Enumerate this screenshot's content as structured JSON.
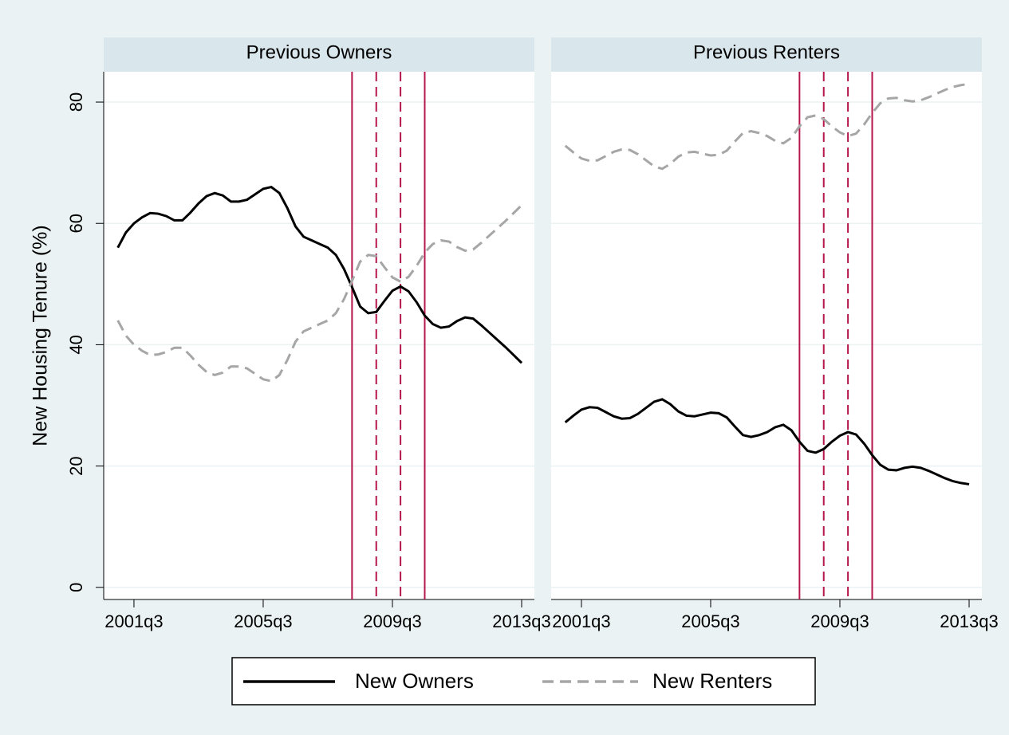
{
  "chart_data": [
    {
      "type": "line",
      "title": "Previous Owners",
      "y_label": "New Housing Tenure (%)",
      "x": [
        "2001q1",
        "2001q2",
        "2001q3",
        "2001q4",
        "2002q1",
        "2002q2",
        "2002q3",
        "2002q4",
        "2003q1",
        "2003q2",
        "2003q3",
        "2003q4",
        "2004q1",
        "2004q2",
        "2004q3",
        "2004q4",
        "2005q1",
        "2005q2",
        "2005q3",
        "2005q4",
        "2006q1",
        "2006q2",
        "2006q3",
        "2006q4",
        "2007q1",
        "2007q2",
        "2007q3",
        "2007q4",
        "2008q1",
        "2008q2",
        "2008q3",
        "2008q4",
        "2009q1",
        "2009q2",
        "2009q3",
        "2009q4",
        "2010q1",
        "2010q2",
        "2010q3",
        "2010q4",
        "2011q1",
        "2011q2",
        "2011q3",
        "2011q4",
        "2012q1",
        "2012q2",
        "2012q3",
        "2012q4",
        "2013q1",
        "2013q2",
        "2013q3"
      ],
      "xticks": [
        "2001q3",
        "2005q3",
        "2009q3",
        "2013q3"
      ],
      "ylim": [
        -2,
        85
      ],
      "yticks": [
        0,
        20,
        40,
        60,
        80
      ],
      "grid": true,
      "reference_lines": [
        {
          "x": "2008q2",
          "style": "solid"
        },
        {
          "x": "2009q1",
          "style": "dashed"
        },
        {
          "x": "2009q4",
          "style": "dashed"
        },
        {
          "x": "2010q3",
          "style": "solid"
        }
      ],
      "reference_color": "#b5174b",
      "series": [
        {
          "name": "New Owners",
          "color": "#000000",
          "dash": "solid",
          "values": [
            56,
            58.5,
            60,
            61,
            61.7,
            61.6,
            61.2,
            60.5,
            60.5,
            61.8,
            63.3,
            64.5,
            65,
            64.6,
            63.6,
            63.6,
            63.9,
            64.8,
            65.7,
            66,
            65,
            62.5,
            59.5,
            57.8,
            57.2,
            56.6,
            56,
            54.8,
            52.5,
            49.5,
            46.3,
            45.2,
            45.4,
            47.2,
            48.9,
            49.6,
            48.8,
            47,
            44.8,
            43.4,
            42.8,
            43,
            43.9,
            44.5,
            44.3,
            43.2,
            42,
            40.8,
            39.6,
            38.3,
            37
          ]
        },
        {
          "name": "New Renters",
          "color": "#a6a6a6",
          "dash": "dashed",
          "values": [
            44,
            41.5,
            40,
            39,
            38.3,
            38.4,
            38.8,
            39.5,
            39.5,
            38.2,
            36.7,
            35.5,
            35,
            35.4,
            36.4,
            36.4,
            36.1,
            35.2,
            34.3,
            34,
            35,
            37.5,
            40.5,
            42.2,
            42.8,
            43.4,
            44,
            45.2,
            47.5,
            50.5,
            53.7,
            54.8,
            54.6,
            52.8,
            51.1,
            50.4,
            51.2,
            53,
            55.2,
            56.6,
            57.2,
            57,
            56.1,
            55.5,
            55.7,
            56.8,
            58,
            59.2,
            60.4,
            61.7,
            63
          ]
        }
      ]
    },
    {
      "type": "line",
      "title": "Previous Renters",
      "x": [
        "2001q1",
        "2001q2",
        "2001q3",
        "2001q4",
        "2002q1",
        "2002q2",
        "2002q3",
        "2002q4",
        "2003q1",
        "2003q2",
        "2003q3",
        "2003q4",
        "2004q1",
        "2004q2",
        "2004q3",
        "2004q4",
        "2005q1",
        "2005q2",
        "2005q3",
        "2005q4",
        "2006q1",
        "2006q2",
        "2006q3",
        "2006q4",
        "2007q1",
        "2007q2",
        "2007q3",
        "2007q4",
        "2008q1",
        "2008q2",
        "2008q3",
        "2008q4",
        "2009q1",
        "2009q2",
        "2009q3",
        "2009q4",
        "2010q1",
        "2010q2",
        "2010q3",
        "2010q4",
        "2011q1",
        "2011q2",
        "2011q3",
        "2011q4",
        "2012q1",
        "2012q2",
        "2012q3",
        "2012q4",
        "2013q1",
        "2013q2",
        "2013q3"
      ],
      "xticks": [
        "2001q3",
        "2005q3",
        "2009q3",
        "2013q3"
      ],
      "ylim": [
        -2,
        85
      ],
      "yticks": [
        0,
        20,
        40,
        60,
        80
      ],
      "grid": true,
      "reference_lines": [
        {
          "x": "2008q2",
          "style": "solid"
        },
        {
          "x": "2009q1",
          "style": "dashed"
        },
        {
          "x": "2009q4",
          "style": "dashed"
        },
        {
          "x": "2010q3",
          "style": "solid"
        }
      ],
      "reference_color": "#b5174b",
      "series": [
        {
          "color": "#000000",
          "dash": "solid",
          "values": [
            27.2,
            28.3,
            29.3,
            29.7,
            29.6,
            28.9,
            28.2,
            27.8,
            27.9,
            28.6,
            29.6,
            30.6,
            31,
            30.2,
            29,
            28.3,
            28.2,
            28.5,
            28.8,
            28.7,
            28,
            26.5,
            25.1,
            24.8,
            25.1,
            25.6,
            26.4,
            26.8,
            25.9,
            24,
            22.5,
            22.2,
            22.8,
            24,
            25,
            25.6,
            25.2,
            23.7,
            21.8,
            20.2,
            19.4,
            19.3,
            19.7,
            19.9,
            19.7,
            19.2,
            18.6,
            18,
            17.5,
            17.2,
            17
          ]
        },
        {
          "color": "#a6a6a6",
          "dash": "dashed",
          "values": [
            72.8,
            71.7,
            70.7,
            70.3,
            70.4,
            71.1,
            71.8,
            72.2,
            72.1,
            71.4,
            70.4,
            69.4,
            69,
            69.8,
            71,
            71.7,
            71.8,
            71.5,
            71.2,
            71.3,
            72,
            73.5,
            74.9,
            75.2,
            74.9,
            74.4,
            73.6,
            73.2,
            74.1,
            76,
            77.5,
            77.8,
            77.2,
            76,
            75,
            74.4,
            74.8,
            76.3,
            78.2,
            79.8,
            80.6,
            80.7,
            80.3,
            80.1,
            80.3,
            80.8,
            81.4,
            82,
            82.5,
            82.8,
            83
          ]
        }
      ]
    }
  ]
}
